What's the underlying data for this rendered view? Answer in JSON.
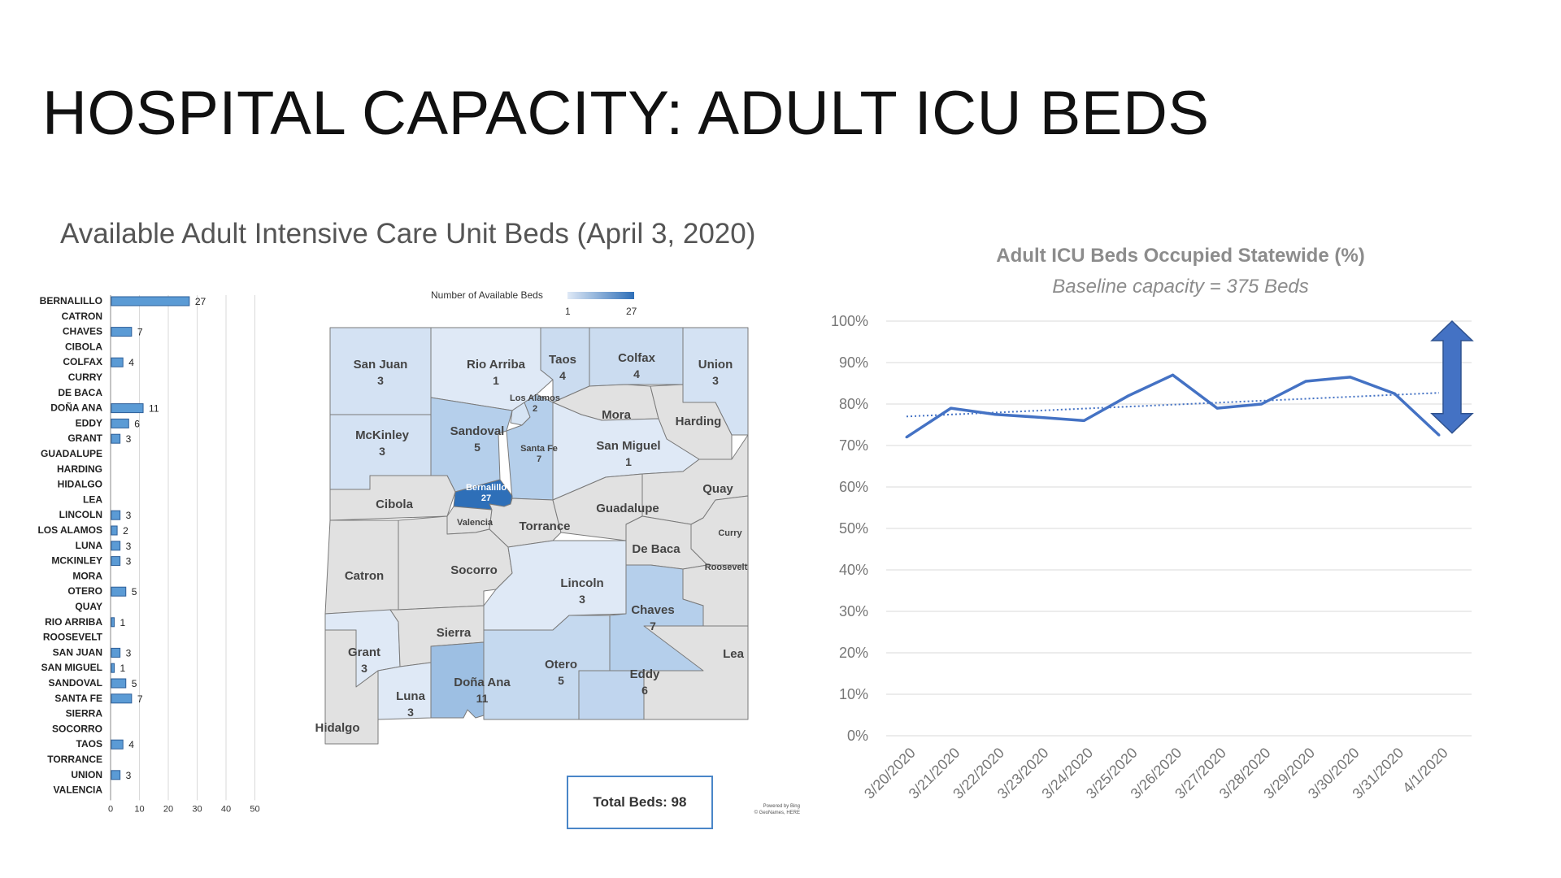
{
  "title": "HOSPITAL CAPACITY: ADULT ICU BEDS",
  "subtitle": "Available Adult Intensive Care Unit Beds (April 3, 2020)",
  "colors": {
    "bar": "#5b9bd5",
    "bar_outline": "#2e5f99",
    "line": "#4472c4",
    "trend": "#4472c4",
    "arrow": "#4472c4",
    "map_none": "#e1e1e1",
    "map_max": "#2e6fb8",
    "map_min": "#dfe9f6"
  },
  "map": {
    "legend_title": "Number of Available Beds",
    "legend_min": "1",
    "legend_max": "27",
    "total_label": "Total Beds: 98",
    "credit_line1": "Powered by Bing",
    "credit_line2": "© GeoNames, HERE",
    "counties": [
      {
        "name": "San Juan",
        "value": "3"
      },
      {
        "name": "Rio Arriba",
        "value": "1"
      },
      {
        "name": "Taos",
        "value": "4"
      },
      {
        "name": "Colfax",
        "value": "4"
      },
      {
        "name": "Union",
        "value": "3"
      },
      {
        "name": "Los Alamos",
        "value": "2"
      },
      {
        "name": "Mora",
        "value": ""
      },
      {
        "name": "Harding",
        "value": ""
      },
      {
        "name": "McKinley",
        "value": "3"
      },
      {
        "name": "Sandoval",
        "value": "5"
      },
      {
        "name": "Santa Fe",
        "value": "7"
      },
      {
        "name": "San Miguel",
        "value": "1"
      },
      {
        "name": "Bernalillo",
        "value": "27"
      },
      {
        "name": "Cibola",
        "value": ""
      },
      {
        "name": "Valencia",
        "value": ""
      },
      {
        "name": "Torrance",
        "value": ""
      },
      {
        "name": "Guadalupe",
        "value": ""
      },
      {
        "name": "Quay",
        "value": ""
      },
      {
        "name": "Curry",
        "value": ""
      },
      {
        "name": "De Baca",
        "value": ""
      },
      {
        "name": "Roosevelt",
        "value": ""
      },
      {
        "name": "Catron",
        "value": ""
      },
      {
        "name": "Socorro",
        "value": ""
      },
      {
        "name": "Lincoln",
        "value": "3"
      },
      {
        "name": "Chaves",
        "value": "7"
      },
      {
        "name": "Sierra",
        "value": ""
      },
      {
        "name": "Grant",
        "value": "3"
      },
      {
        "name": "Otero",
        "value": "5"
      },
      {
        "name": "Eddy",
        "value": "6"
      },
      {
        "name": "Lea",
        "value": ""
      },
      {
        "name": "Doña Ana",
        "value": "11"
      },
      {
        "name": "Luna",
        "value": "3"
      },
      {
        "name": "Hidalgo",
        "value": ""
      }
    ]
  },
  "chart_data": [
    {
      "type": "bar",
      "orientation": "horizontal",
      "title": "",
      "xlabel": "",
      "ylabel": "",
      "xlim": [
        0,
        50
      ],
      "xticks": [
        "0",
        "10",
        "20",
        "30",
        "40",
        "50"
      ],
      "grid": true,
      "categories": [
        "BERNALILLO",
        "CATRON",
        "CHAVES",
        "CIBOLA",
        "COLFAX",
        "CURRY",
        "DE BACA",
        "DOÑA ANA",
        "EDDY",
        "GRANT",
        "GUADALUPE",
        "HARDING",
        "HIDALGO",
        "LEA",
        "LINCOLN",
        "LOS ALAMOS",
        "LUNA",
        "MCKINLEY",
        "MORA",
        "OTERO",
        "QUAY",
        "RIO ARRIBA",
        "ROOSEVELT",
        "SAN JUAN",
        "SAN MIGUEL",
        "SANDOVAL",
        "SANTA FE",
        "SIERRA",
        "SOCORRO",
        "TAOS",
        "TORRANCE",
        "UNION",
        "VALENCIA"
      ],
      "values": [
        27,
        null,
        7,
        null,
        4,
        null,
        null,
        11,
        6,
        3,
        null,
        null,
        null,
        null,
        3,
        2,
        3,
        3,
        null,
        5,
        null,
        1,
        null,
        3,
        1,
        5,
        7,
        null,
        null,
        4,
        null,
        3,
        null
      ],
      "value_labels": [
        "27",
        "",
        "7",
        "",
        "4",
        "",
        "",
        "11",
        "6",
        "3",
        "",
        "",
        "",
        "",
        "3",
        "2",
        "3",
        "3",
        "",
        "5",
        "",
        "1",
        "",
        "3",
        "1",
        "5",
        "7",
        "",
        "",
        "4",
        "",
        "3",
        ""
      ]
    },
    {
      "type": "line",
      "title": "Adult ICU Beds Occupied Statewide (%)",
      "subtitle": "Baseline capacity = 375 Beds",
      "xlabel": "",
      "ylabel": "",
      "ylim": [
        0,
        100
      ],
      "yticks": [
        "0%",
        "10%",
        "20%",
        "30%",
        "40%",
        "50%",
        "60%",
        "70%",
        "80%",
        "90%",
        "100%"
      ],
      "grid": true,
      "x": [
        "3/20/2020",
        "3/21/2020",
        "3/22/2020",
        "3/23/2020",
        "3/24/2020",
        "3/25/2020",
        "3/26/2020",
        "3/27/2020",
        "3/28/2020",
        "3/29/2020",
        "3/30/2020",
        "3/31/2020",
        "4/1/2020"
      ],
      "series": [
        {
          "values": [
            72,
            79,
            77.5,
            76.8,
            76,
            82,
            87,
            79,
            80,
            85.5,
            86.5,
            82.5,
            72.5
          ]
        }
      ],
      "trendline": {
        "style": "dotted",
        "start": 77,
        "end": 82.7
      },
      "annotation": "double-headed vertical arrow spanning ~73% to ~100% at right edge"
    }
  ]
}
